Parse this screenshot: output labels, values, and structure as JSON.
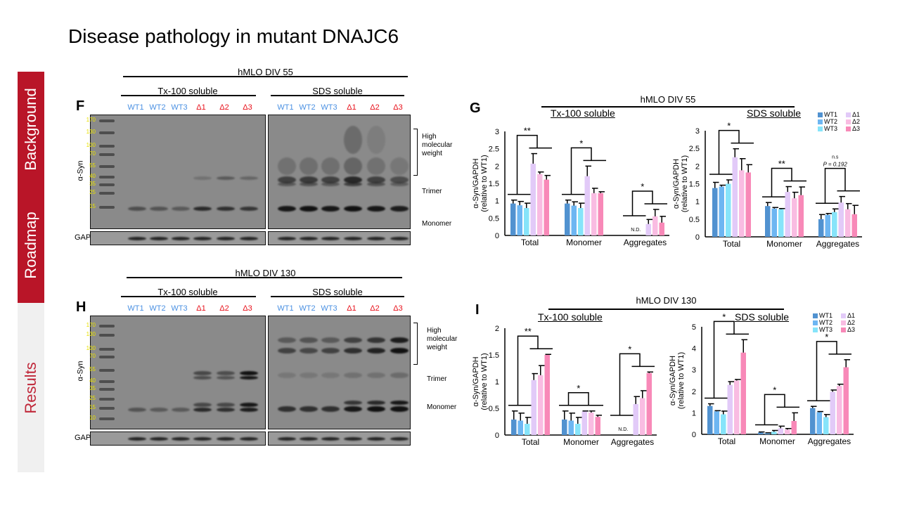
{
  "slide": {
    "title": "Disease pathology in mutant DNAJC6",
    "sidebar": [
      {
        "label": "Background",
        "active": false
      },
      {
        "label": "Roadmap",
        "active": false
      },
      {
        "label": "Results",
        "active": true
      }
    ],
    "colors": {
      "sidebar_red": "#b91528",
      "sidebar_grey": "#f0f0f0",
      "results_text": "#c0283a",
      "wt_label": "#4a90e2",
      "mut_label": "#e8101a",
      "marker": "#e8e000"
    }
  },
  "blots": [
    {
      "panel": "F",
      "condition": "hMLO DIV 55",
      "fractions": [
        "Tx-100 soluble",
        "SDS soluble"
      ],
      "lanes": [
        "WT1",
        "WT2",
        "WT3",
        "Δ1",
        "Δ2",
        "Δ3"
      ],
      "markers": [
        "170",
        "130",
        "100",
        "70",
        "55",
        "40",
        "35",
        "25",
        "15"
      ],
      "antibody": "α-Syn",
      "loading": "GAPDH",
      "band_labels": [
        "High molecular weight",
        "Trimer",
        "Monomer"
      ]
    },
    {
      "panel": "H",
      "condition": "hMLO DIV 130",
      "fractions": [
        "Tx-100 soluble",
        "SDS soluble"
      ],
      "lanes": [
        "WT1",
        "WT2",
        "WT3",
        "Δ1",
        "Δ2",
        "Δ3"
      ],
      "markers": [
        "170",
        "130",
        "100",
        "70",
        "55",
        "40",
        "35",
        "25",
        "15",
        "10"
      ],
      "antibody": "α-Syn",
      "loading": "GAPDH",
      "band_labels": [
        "High molecular weight",
        "Trimer",
        "Monomer"
      ]
    }
  ],
  "chart_panels": [
    {
      "panel": "G",
      "condition": "hMLO DIV 55"
    },
    {
      "panel": "I",
      "condition": "hMLO DIV 130"
    }
  ],
  "legend": [
    {
      "name": "WT1",
      "color": "#5192d0"
    },
    {
      "name": "WT2",
      "color": "#6db6f2"
    },
    {
      "name": "WT3",
      "color": "#86e4fa"
    },
    {
      "name": "Δ1",
      "color": "#e2caf8"
    },
    {
      "name": "Δ2",
      "color": "#f9bce2"
    },
    {
      "name": "Δ3",
      "color": "#f889b8"
    }
  ],
  "chart_data": [
    {
      "type": "bar",
      "title": "Tx-100 soluble",
      "ylabel": [
        "α-Syn/GAPDH",
        "(relative to WT1)"
      ],
      "ylim": [
        0,
        3
      ],
      "yticks": [
        "0",
        "0.5",
        "1",
        "1.5",
        "2",
        "2.5",
        "3"
      ],
      "categories": [
        "Total",
        "Monomer",
        "Aggregates"
      ],
      "not_detected": "N.D.",
      "series": [
        {
          "name": "WT1",
          "values": [
            0.92,
            0.92,
            null
          ],
          "errors": [
            0.1,
            0.1,
            null
          ]
        },
        {
          "name": "WT2",
          "values": [
            0.87,
            0.86,
            null
          ],
          "errors": [
            0.11,
            0.11,
            null
          ]
        },
        {
          "name": "WT3",
          "values": [
            0.79,
            0.79,
            null
          ],
          "errors": [
            0.14,
            0.14,
            null
          ]
        },
        {
          "name": "Δ1",
          "values": [
            2.07,
            1.71,
            0.33
          ],
          "errors": [
            0.29,
            0.29,
            0.13
          ]
        },
        {
          "name": "Δ2",
          "values": [
            1.77,
            1.22,
            0.55
          ],
          "errors": [
            0.06,
            0.14,
            0.2
          ]
        },
        {
          "name": "Δ3",
          "values": [
            1.61,
            1.22,
            0.37
          ],
          "errors": [
            0.12,
            0.04,
            0.18
          ]
        }
      ],
      "significance": [
        {
          "category": "Total",
          "text": "**"
        },
        {
          "category": "Monomer",
          "text": "*"
        },
        {
          "category": "Aggregates",
          "text": "*"
        }
      ]
    },
    {
      "type": "bar",
      "title": "SDS soluble",
      "ylabel": [
        "α-Syn/GAPDH",
        "(relative to WT1)"
      ],
      "ylim": [
        0,
        3
      ],
      "yticks": [
        "0",
        "0.5",
        "1",
        "1.5",
        "2",
        "2.5",
        "3"
      ],
      "categories": [
        "Total",
        "Monomer",
        "Aggregates"
      ],
      "series": [
        {
          "name": "WT1",
          "values": [
            1.38,
            0.87,
            0.5
          ],
          "errors": [
            0.16,
            0.1,
            0.13
          ]
        },
        {
          "name": "WT2",
          "values": [
            1.42,
            0.8,
            0.62
          ],
          "errors": [
            0.04,
            0.03,
            0.04
          ]
        },
        {
          "name": "WT3",
          "values": [
            1.5,
            0.78,
            0.7
          ],
          "errors": [
            0.11,
            0.02,
            0.09
          ]
        },
        {
          "name": "Δ1",
          "values": [
            2.25,
            1.27,
            0.97
          ],
          "errors": [
            0.24,
            0.15,
            0.17
          ]
        },
        {
          "name": "Δ2",
          "values": [
            1.88,
            1.09,
            0.78
          ],
          "errors": [
            0.33,
            0.17,
            0.16
          ]
        },
        {
          "name": "Δ3",
          "values": [
            1.82,
            1.18,
            0.64
          ],
          "errors": [
            0.22,
            0.23,
            0.25
          ]
        }
      ],
      "significance": [
        {
          "category": "Total",
          "text": "*"
        },
        {
          "category": "Monomer",
          "text": "**"
        },
        {
          "category": "Aggregates",
          "text": "n.s",
          "subtext": "P = 0.192"
        }
      ]
    },
    {
      "type": "bar",
      "title": "Tx-100 soluble",
      "ylabel": [
        "α-Syn/GAPDH",
        "(relative to WT1)"
      ],
      "ylim": [
        0,
        2
      ],
      "yticks": [
        "0",
        "0.5",
        "1",
        "1.5",
        "2"
      ],
      "categories": [
        "Total",
        "Monomer",
        "Aggregates"
      ],
      "not_detected": "N.D.",
      "series": [
        {
          "name": "WT1",
          "values": [
            0.29,
            0.29,
            null
          ],
          "errors": [
            0.16,
            0.16,
            null
          ]
        },
        {
          "name": "WT2",
          "values": [
            0.27,
            0.27,
            null
          ],
          "errors": [
            0.14,
            0.14,
            null
          ]
        },
        {
          "name": "WT3",
          "values": [
            0.21,
            0.21,
            null
          ],
          "errors": [
            0.12,
            0.12,
            null
          ]
        },
        {
          "name": "Δ1",
          "values": [
            1.03,
            0.44,
            0.58
          ],
          "errors": [
            0.12,
            0.01,
            0.14
          ]
        },
        {
          "name": "Δ2",
          "values": [
            1.12,
            0.42,
            0.69
          ],
          "errors": [
            0.18,
            0.03,
            0.14
          ]
        },
        {
          "name": "Δ3",
          "values": [
            1.5,
            0.34,
            1.16
          ],
          "errors": [
            0.01,
            0.03,
            0.02
          ]
        }
      ],
      "significance": [
        {
          "category": "Total",
          "text": "**"
        },
        {
          "category": "Monomer",
          "text": "*"
        },
        {
          "category": "Aggregates",
          "text": "*"
        }
      ]
    },
    {
      "type": "bar",
      "title": "SDS soluble",
      "ylabel": [
        "α-Syn/GAPDH",
        "(relative to WT1)"
      ],
      "ylim": [
        0,
        5
      ],
      "yticks": [
        "0",
        "1",
        "2",
        "3",
        "4",
        "5"
      ],
      "categories": [
        "Total",
        "Monomer",
        "Aggregates"
      ],
      "series": [
        {
          "name": "WT1",
          "values": [
            1.32,
            0.08,
            1.22
          ],
          "errors": [
            0.1,
            0.03,
            0.08
          ]
        },
        {
          "name": "WT2",
          "values": [
            1.07,
            0.05,
            1.03
          ],
          "errors": [
            0.03,
            0.02,
            0.03
          ]
        },
        {
          "name": "WT3",
          "values": [
            0.93,
            0.12,
            0.8
          ],
          "errors": [
            0.15,
            0.06,
            0.12
          ]
        },
        {
          "name": "Δ1",
          "values": [
            2.3,
            0.28,
            1.98
          ],
          "errors": [
            0.15,
            0.1,
            0.08
          ]
        },
        {
          "name": "Δ2",
          "values": [
            2.5,
            0.22,
            2.25
          ],
          "errors": [
            0.05,
            0.05,
            0.08
          ]
        },
        {
          "name": "Δ3",
          "values": [
            3.8,
            0.62,
            3.12
          ],
          "errors": [
            0.6,
            0.38,
            0.35
          ]
        }
      ],
      "significance": [
        {
          "category": "Total",
          "text": "*"
        },
        {
          "category": "Monomer",
          "text": "*"
        },
        {
          "category": "Aggregates",
          "text": "*"
        }
      ]
    }
  ]
}
